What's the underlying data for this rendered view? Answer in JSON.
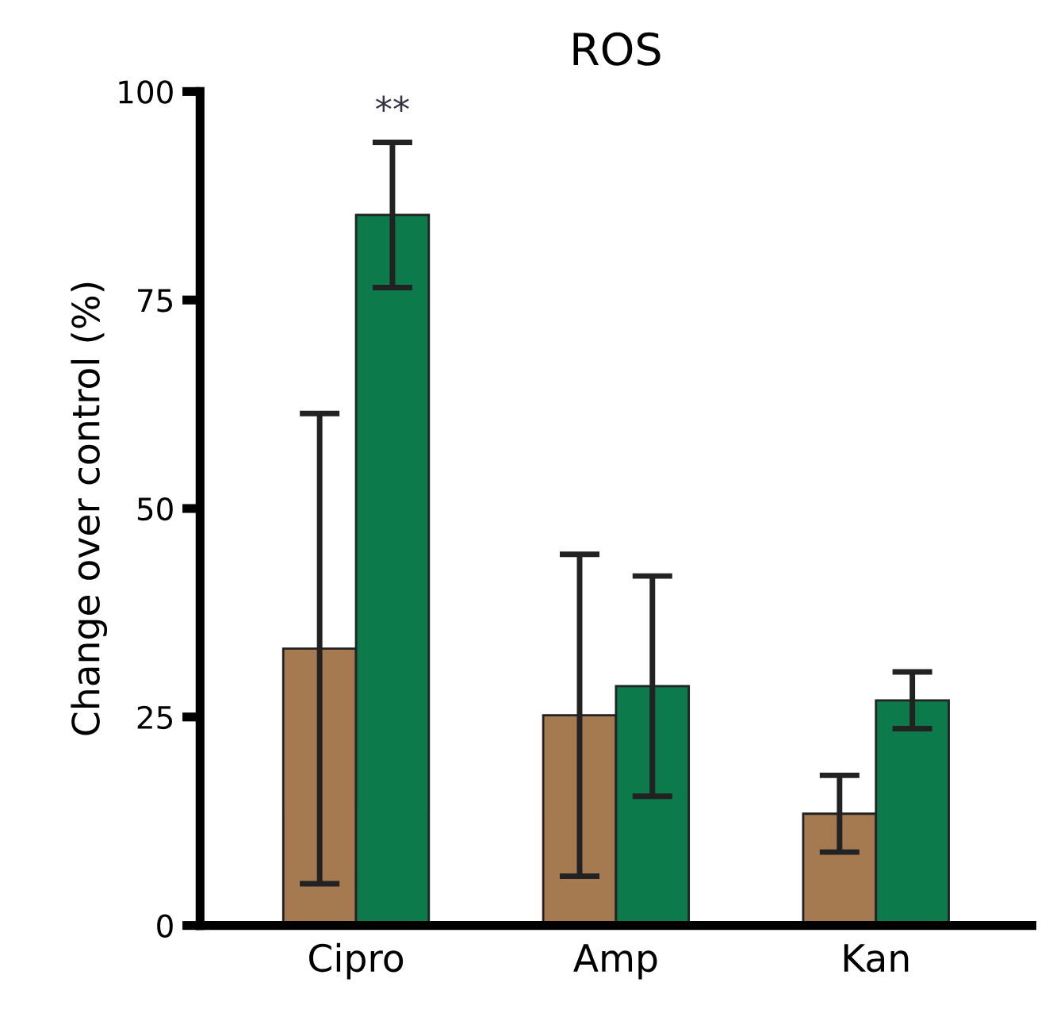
{
  "chart_data": {
    "type": "bar",
    "title": "ROS",
    "ylabel": "Change over control (%)",
    "categories": [
      "Cipro",
      "Amp",
      "Kan"
    ],
    "series": [
      {
        "color": "#a67a50",
        "values": [
          33.2,
          25.2,
          13.4
        ],
        "errors": [
          28.2,
          19.3,
          4.6
        ]
      },
      {
        "color": "#0c7a4a",
        "values": [
          85.2,
          28.7,
          27.0
        ],
        "errors": [
          8.7,
          13.2,
          3.4
        ]
      }
    ],
    "annotations": [
      "**"
    ],
    "ylim": [
      0,
      100
    ],
    "yticks": [
      0,
      25,
      50,
      75,
      100
    ],
    "grid": false
  }
}
